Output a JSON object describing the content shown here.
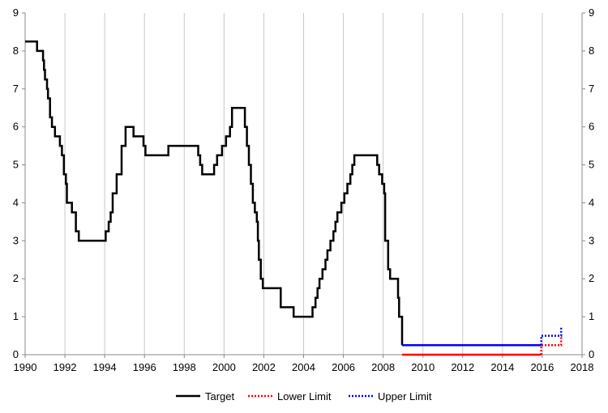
{
  "chart_data": {
    "type": "line",
    "title": "",
    "xlabel": "",
    "ylabel": "",
    "xlim": [
      1990,
      2018
    ],
    "ylim": [
      0,
      9
    ],
    "x_ticks": [
      1990,
      1992,
      1994,
      1996,
      1998,
      2000,
      2002,
      2004,
      2006,
      2008,
      2010,
      2012,
      2014,
      2016,
      2018
    ],
    "y_ticks": [
      0,
      1,
      2,
      3,
      4,
      5,
      6,
      7,
      8,
      9
    ],
    "grid": {
      "vertical": true,
      "horizontal": false,
      "color": "#c8c8c8"
    },
    "y_axis_both_sides": true,
    "legend_position": "bottom-center",
    "series": [
      {
        "name": "Target",
        "color": "#000000",
        "style": "solid",
        "step": true,
        "points": [
          [
            1990.0,
            8.25
          ],
          [
            1990.6,
            8.0
          ],
          [
            1990.9,
            7.75
          ],
          [
            1990.95,
            7.5
          ],
          [
            1991.0,
            7.25
          ],
          [
            1991.1,
            7.0
          ],
          [
            1991.15,
            6.75
          ],
          [
            1991.25,
            6.25
          ],
          [
            1991.35,
            6.0
          ],
          [
            1991.5,
            5.75
          ],
          [
            1991.75,
            5.5
          ],
          [
            1991.85,
            5.25
          ],
          [
            1991.95,
            4.75
          ],
          [
            1992.05,
            4.5
          ],
          [
            1992.1,
            4.0
          ],
          [
            1992.35,
            3.75
          ],
          [
            1992.55,
            3.25
          ],
          [
            1992.7,
            3.0
          ],
          [
            1994.05,
            3.25
          ],
          [
            1994.2,
            3.5
          ],
          [
            1994.3,
            3.75
          ],
          [
            1994.4,
            4.25
          ],
          [
            1994.6,
            4.75
          ],
          [
            1994.85,
            5.5
          ],
          [
            1995.05,
            6.0
          ],
          [
            1995.45,
            5.75
          ],
          [
            1995.95,
            5.5
          ],
          [
            1996.05,
            5.25
          ],
          [
            1997.2,
            5.5
          ],
          [
            1998.7,
            5.25
          ],
          [
            1998.8,
            5.0
          ],
          [
            1998.9,
            4.75
          ],
          [
            1999.5,
            5.0
          ],
          [
            1999.65,
            5.25
          ],
          [
            1999.9,
            5.5
          ],
          [
            2000.1,
            5.75
          ],
          [
            2000.3,
            6.0
          ],
          [
            2000.4,
            6.5
          ],
          [
            2001.05,
            6.0
          ],
          [
            2001.15,
            5.5
          ],
          [
            2001.25,
            5.0
          ],
          [
            2001.35,
            4.5
          ],
          [
            2001.45,
            4.0
          ],
          [
            2001.55,
            3.75
          ],
          [
            2001.65,
            3.5
          ],
          [
            2001.7,
            3.0
          ],
          [
            2001.75,
            2.5
          ],
          [
            2001.85,
            2.0
          ],
          [
            2001.95,
            1.75
          ],
          [
            2002.85,
            1.25
          ],
          [
            2003.5,
            1.0
          ],
          [
            2004.45,
            1.25
          ],
          [
            2004.6,
            1.5
          ],
          [
            2004.7,
            1.75
          ],
          [
            2004.8,
            2.0
          ],
          [
            2004.95,
            2.25
          ],
          [
            2005.1,
            2.5
          ],
          [
            2005.2,
            2.75
          ],
          [
            2005.35,
            3.0
          ],
          [
            2005.5,
            3.25
          ],
          [
            2005.6,
            3.5
          ],
          [
            2005.7,
            3.75
          ],
          [
            2005.9,
            4.0
          ],
          [
            2006.05,
            4.25
          ],
          [
            2006.2,
            4.5
          ],
          [
            2006.35,
            4.75
          ],
          [
            2006.45,
            5.0
          ],
          [
            2006.55,
            5.25
          ],
          [
            2007.7,
            5.0
          ],
          [
            2007.8,
            4.75
          ],
          [
            2007.95,
            4.5
          ],
          [
            2008.05,
            4.25
          ],
          [
            2008.1,
            3.0
          ],
          [
            2008.25,
            2.25
          ],
          [
            2008.35,
            2.0
          ],
          [
            2008.75,
            1.5
          ],
          [
            2008.8,
            1.0
          ],
          [
            2008.95,
            0.25
          ],
          [
            2008.95,
            0.25
          ]
        ]
      },
      {
        "name": "Lower Limit",
        "color": "#ff0000",
        "style": "dotted",
        "step": true,
        "solid_until": 2015.95,
        "points": [
          [
            2008.95,
            0.0
          ],
          [
            2015.95,
            0.25
          ],
          [
            2016.95,
            0.5
          ]
        ]
      },
      {
        "name": "Upper Limit",
        "color": "#0000ff",
        "style": "dotted",
        "step": true,
        "solid_until": 2015.95,
        "points": [
          [
            2008.95,
            0.25
          ],
          [
            2015.95,
            0.5
          ],
          [
            2016.95,
            0.75
          ]
        ]
      }
    ]
  }
}
